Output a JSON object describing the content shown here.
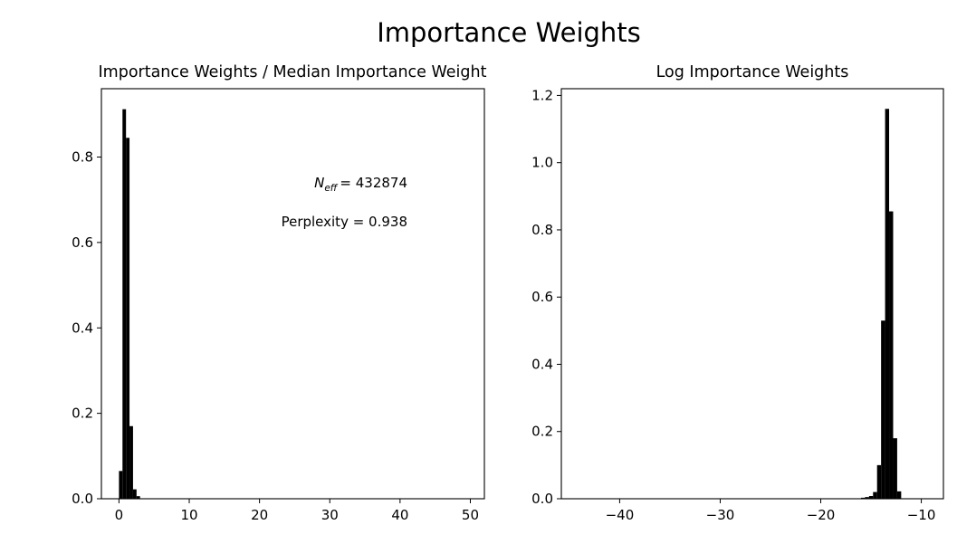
{
  "figure": {
    "title": "Importance Weights"
  },
  "chart_data": [
    {
      "type": "bar",
      "title": "Importance Weights / Median Importance Weight",
      "xlabel": "",
      "ylabel": "",
      "xlim": [
        -2.5,
        52
      ],
      "ylim": [
        0,
        0.96
      ],
      "xticks": [
        0,
        10,
        20,
        30,
        40,
        50
      ],
      "xtick_labels": [
        "0",
        "10",
        "20",
        "30",
        "40",
        "50"
      ],
      "yticks": [
        0.0,
        0.2,
        0.4,
        0.6,
        0.8
      ],
      "ytick_labels": [
        "0.0",
        "0.2",
        "0.4",
        "0.6",
        "0.8"
      ],
      "bin_width": 0.5,
      "bins": [
        {
          "x": 0.0,
          "height": 0.065
        },
        {
          "x": 0.5,
          "height": 0.912
        },
        {
          "x": 1.0,
          "height": 0.845
        },
        {
          "x": 1.5,
          "height": 0.17
        },
        {
          "x": 2.0,
          "height": 0.022
        },
        {
          "x": 2.5,
          "height": 0.006
        }
      ],
      "color": "#000000",
      "grid": false,
      "annotations": {
        "neff_symbol": "N",
        "neff_subscript": "eff",
        "neff_value": "= 432874",
        "perplexity": "Perplexity = 0.938"
      }
    },
    {
      "type": "bar",
      "title": "Log Importance Weights",
      "xlabel": "",
      "ylabel": "",
      "xlim": [
        -45.8,
        -7.8
      ],
      "ylim": [
        0,
        1.22
      ],
      "xticks": [
        -40,
        -30,
        -20,
        -10
      ],
      "xtick_labels": [
        "−40",
        "−30",
        "−20",
        "−10"
      ],
      "yticks": [
        0.0,
        0.2,
        0.4,
        0.6,
        0.8,
        1.0,
        1.2
      ],
      "ytick_labels": [
        "0.0",
        "0.2",
        "0.4",
        "0.6",
        "0.8",
        "1.0",
        "1.2"
      ],
      "bin_width": 0.4,
      "bins": [
        {
          "x": -16.0,
          "height": 0.003
        },
        {
          "x": -15.6,
          "height": 0.005
        },
        {
          "x": -15.2,
          "height": 0.008
        },
        {
          "x": -14.8,
          "height": 0.02
        },
        {
          "x": -14.4,
          "height": 0.1
        },
        {
          "x": -14.0,
          "height": 0.53
        },
        {
          "x": -13.6,
          "height": 1.16
        },
        {
          "x": -13.2,
          "height": 0.855
        },
        {
          "x": -12.8,
          "height": 0.18
        },
        {
          "x": -12.4,
          "height": 0.022
        }
      ],
      "color": "#000000",
      "grid": false
    }
  ]
}
